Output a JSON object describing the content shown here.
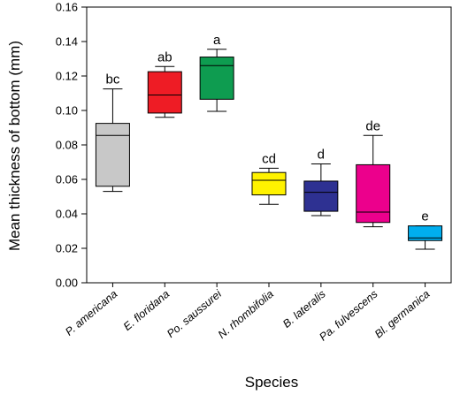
{
  "chart_data": {
    "type": "box",
    "xlabel": "Species",
    "ylabel": "Mean thickness of bottom (mm)",
    "ylim": [
      0.0,
      0.16
    ],
    "yticks": [
      0.0,
      0.02,
      0.04,
      0.06,
      0.08,
      0.1,
      0.12,
      0.14,
      0.16
    ],
    "ytick_labels": [
      "0.00",
      "0.02",
      "0.04",
      "0.06",
      "0.08",
      "0.10",
      "0.12",
      "0.14",
      "0.16"
    ],
    "grid": false,
    "boxes": [
      {
        "category": "P. americana",
        "whisker_low": 0.053,
        "q1": 0.056,
        "median": 0.0855,
        "q3": 0.0925,
        "whisker_high": 0.1125,
        "letter": "bc",
        "color": "#c8c8c8"
      },
      {
        "category": "E. floridana",
        "whisker_low": 0.096,
        "q1": 0.0985,
        "median": 0.109,
        "q3": 0.1225,
        "whisker_high": 0.1255,
        "letter": "ab",
        "color": "#ee1c25"
      },
      {
        "category": "Po. saussurei",
        "whisker_low": 0.0995,
        "q1": 0.1065,
        "median": 0.126,
        "q3": 0.131,
        "whisker_high": 0.1355,
        "letter": "a",
        "color": "#0e9c50"
      },
      {
        "category": "N. rhombifolia",
        "whisker_low": 0.0455,
        "q1": 0.051,
        "median": 0.0595,
        "q3": 0.064,
        "whisker_high": 0.0665,
        "letter": "cd",
        "color": "#fff200"
      },
      {
        "category": "B. lateralis",
        "whisker_low": 0.039,
        "q1": 0.0415,
        "median": 0.0525,
        "q3": 0.059,
        "whisker_high": 0.069,
        "letter": "d",
        "color": "#2e3192"
      },
      {
        "category": "Pa. fulvescens",
        "whisker_low": 0.0325,
        "q1": 0.035,
        "median": 0.041,
        "q3": 0.0685,
        "whisker_high": 0.0855,
        "letter": "de",
        "color": "#ec008c"
      },
      {
        "category": "Bl. germanica",
        "whisker_low": 0.0195,
        "q1": 0.0245,
        "median": 0.026,
        "q3": 0.033,
        "whisker_high": 0.033,
        "letter": "e",
        "color": "#00aeef"
      }
    ]
  }
}
